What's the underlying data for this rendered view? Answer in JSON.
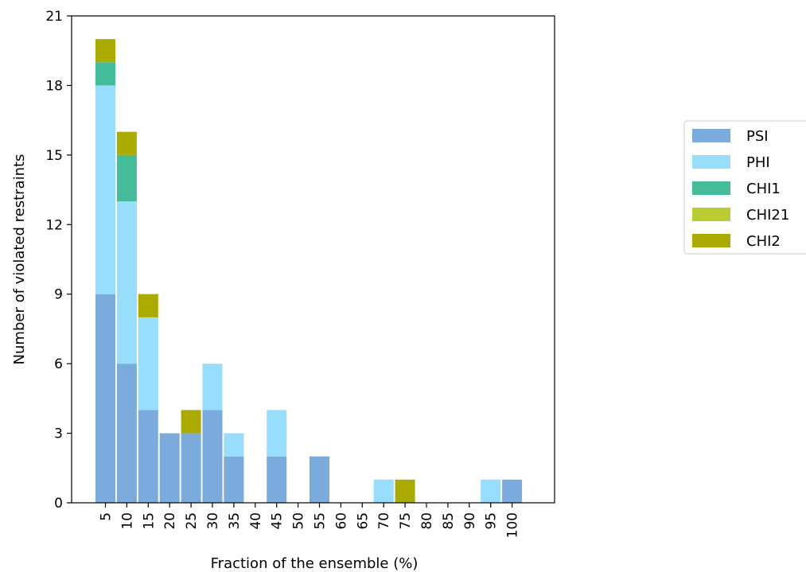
{
  "chart_data": {
    "type": "bar",
    "stacked": true,
    "title": "",
    "xlabel": "Fraction of the ensemble (%)",
    "ylabel": "Number of violated restraints",
    "ylim": [
      0,
      21
    ],
    "yticks": [
      "0",
      "3",
      "6",
      "9",
      "12",
      "15",
      "18",
      "21"
    ],
    "categories": [
      "5",
      "10",
      "15",
      "20",
      "25",
      "30",
      "35",
      "40",
      "45",
      "50",
      "55",
      "60",
      "65",
      "70",
      "75",
      "80",
      "85",
      "90",
      "95",
      "100"
    ],
    "series": [
      {
        "name": "PSI",
        "color": "#7aabdc",
        "values": [
          9,
          6,
          4,
          3,
          3,
          4,
          2,
          0,
          2,
          0,
          2,
          0,
          0,
          0,
          0,
          0,
          0,
          0,
          0,
          1
        ]
      },
      {
        "name": "PHI",
        "color": "#99ddfc",
        "values": [
          9,
          7,
          4,
          0,
          0,
          2,
          1,
          0,
          2,
          0,
          0,
          0,
          0,
          1,
          0,
          0,
          0,
          0,
          1,
          0
        ]
      },
      {
        "name": "CHI1",
        "color": "#44bb99",
        "values": [
          1,
          2,
          0,
          0,
          0,
          0,
          0,
          0,
          0,
          0,
          0,
          0,
          0,
          0,
          0,
          0,
          0,
          0,
          0,
          0
        ]
      },
      {
        "name": "CHI21",
        "color": "#bbcc33",
        "values": [
          0,
          0,
          0,
          0,
          0,
          0,
          0,
          0,
          0,
          0,
          0,
          0,
          0,
          0,
          0,
          0,
          0,
          0,
          0,
          0
        ]
      },
      {
        "name": "CHI2",
        "color": "#aaaa00",
        "values": [
          1,
          1,
          1,
          0,
          1,
          0,
          0,
          0,
          0,
          0,
          0,
          0,
          0,
          0,
          1,
          0,
          0,
          0,
          0,
          0
        ]
      }
    ],
    "grid": false,
    "legend_position": "right"
  }
}
